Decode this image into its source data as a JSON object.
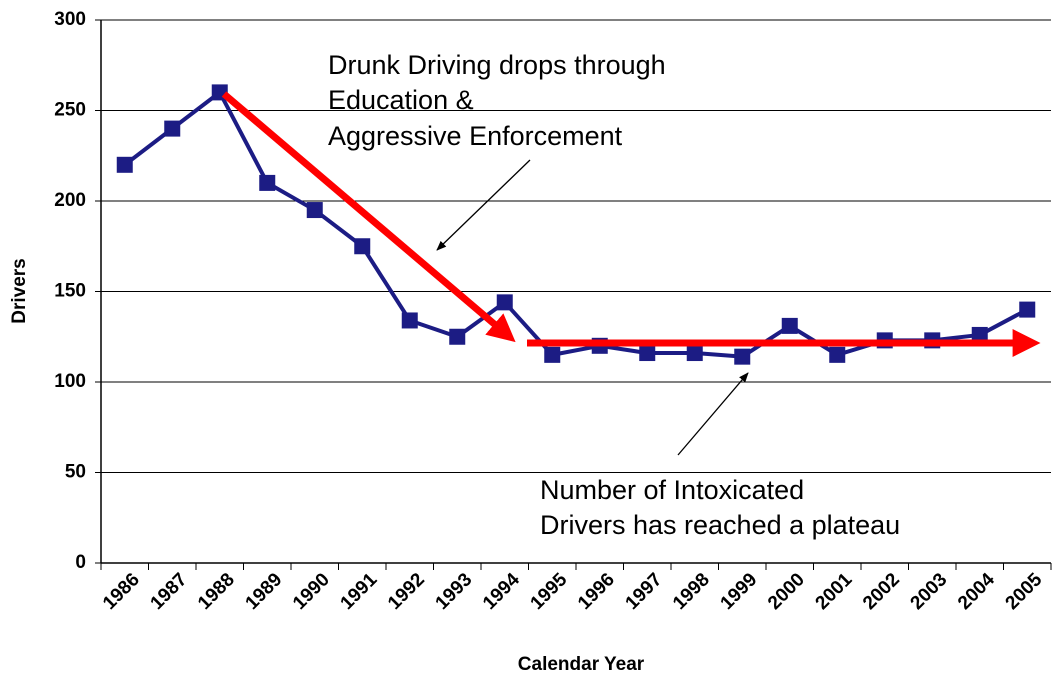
{
  "chart_data": {
    "type": "line",
    "y_label": "Drivers",
    "x_label": "Calendar Year",
    "categories": [
      "1986",
      "1987",
      "1988",
      "1989",
      "1990",
      "1991",
      "1992",
      "1993",
      "1994",
      "1995",
      "1996",
      "1997",
      "1998",
      "1999",
      "2000",
      "2001",
      "2002",
      "2003",
      "2004",
      "2005"
    ],
    "values": [
      220,
      240,
      260,
      210,
      195,
      175,
      134,
      125,
      144,
      115,
      120,
      116,
      116,
      114,
      131,
      115,
      123,
      123,
      126,
      140
    ],
    "color": "#1c1c84",
    "ylim": [
      0,
      300
    ],
    "yticks": [
      0,
      50,
      100,
      150,
      200,
      250,
      300
    ],
    "grid": true,
    "annotations": [
      [
        "Drunk Driving drops through",
        "Education &",
        "Aggressive Enforcement"
      ],
      [
        "Number of Intoxicated",
        "Drivers has reached a plateau"
      ]
    ]
  }
}
